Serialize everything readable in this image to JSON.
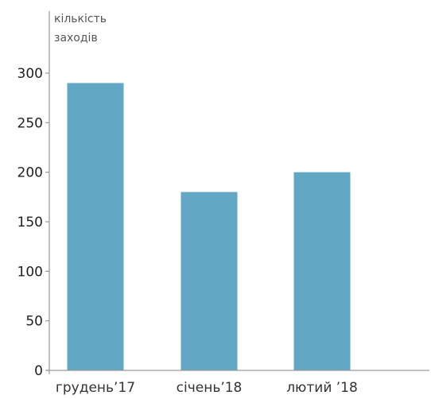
{
  "chart_data": {
    "type": "bar",
    "categories": [
      "грудень’17",
      "січень’18",
      "лютий ’18"
    ],
    "values": [
      290,
      180,
      200
    ],
    "ylabel": [
      "кількість",
      "заходів"
    ],
    "xlabel": "",
    "title": "",
    "ylim": [
      0,
      300
    ],
    "yticks": [
      0,
      50,
      100,
      150,
      200,
      250,
      300
    ],
    "grid": false,
    "legend": "none",
    "colors": {
      "bar": "#62a7c4",
      "axis": "#9a9a9a",
      "text": "#1f1f1f"
    }
  }
}
